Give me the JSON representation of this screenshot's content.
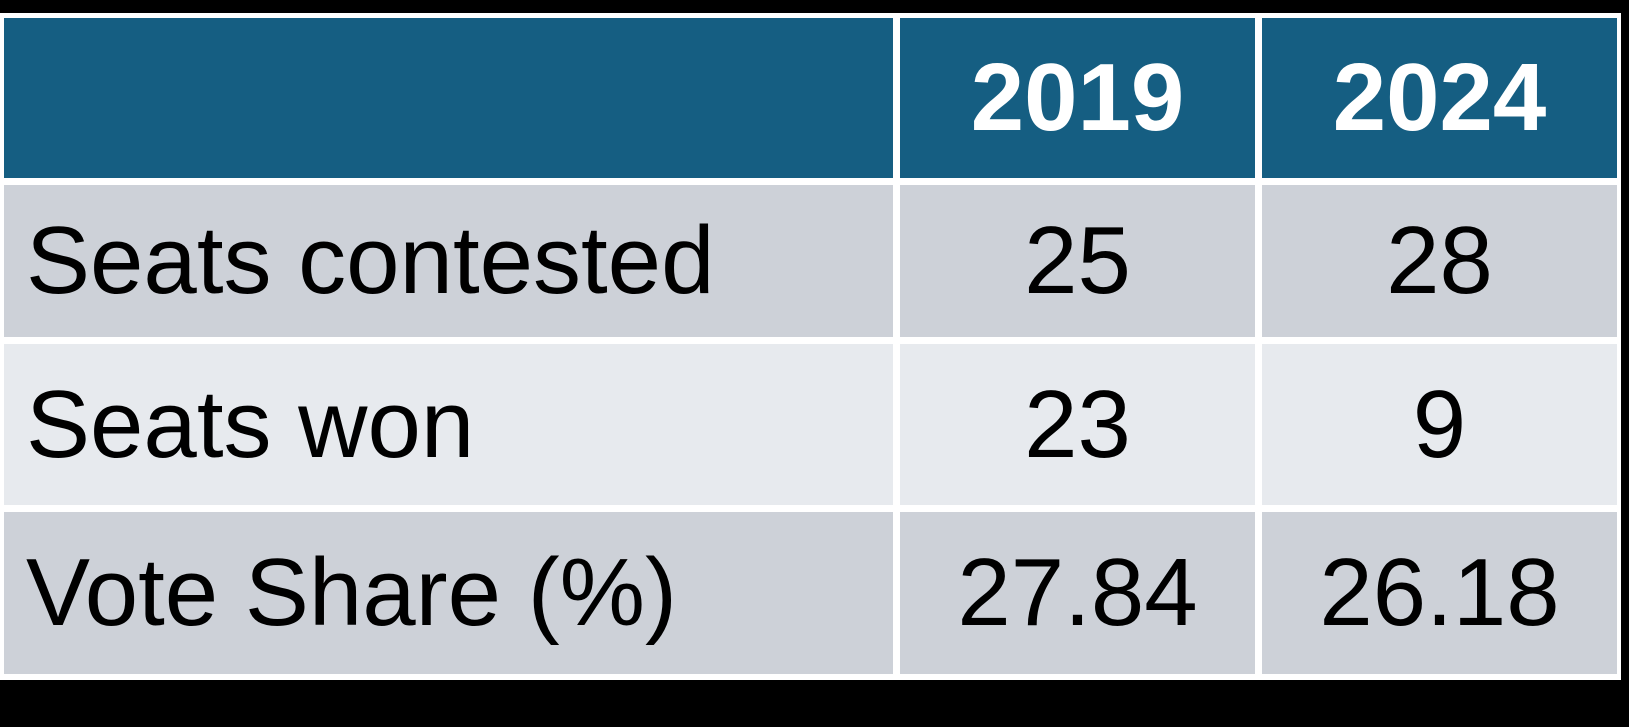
{
  "canvas": {
    "background": "#000000"
  },
  "table": {
    "colors": {
      "header_bg": "#155E82",
      "header_text": "#FFFFFF",
      "row_odd_bg": "#CDD1D8",
      "row_even_bg": "#E7EAEE",
      "grid": "#FFFFFF",
      "body_text": "#000000"
    },
    "columns": [
      "",
      "2019",
      "2024"
    ],
    "rows": [
      {
        "label": "Seats contested",
        "values": [
          "25",
          "28"
        ]
      },
      {
        "label": "Seats won",
        "values": [
          "23",
          "9"
        ]
      },
      {
        "label": "Vote Share (%)",
        "values": [
          "27.84",
          "26.18"
        ]
      }
    ]
  },
  "chart_data": {
    "type": "table",
    "categories": [
      "2019",
      "2024"
    ],
    "series": [
      {
        "name": "Seats contested",
        "values": [
          25,
          28
        ]
      },
      {
        "name": "Seats won",
        "values": [
          23,
          9
        ]
      },
      {
        "name": "Vote Share (%)",
        "values": [
          27.84,
          26.18
        ]
      }
    ],
    "title": "",
    "layout": {
      "header_row": true,
      "label_column": true,
      "banded_rows": true
    }
  }
}
